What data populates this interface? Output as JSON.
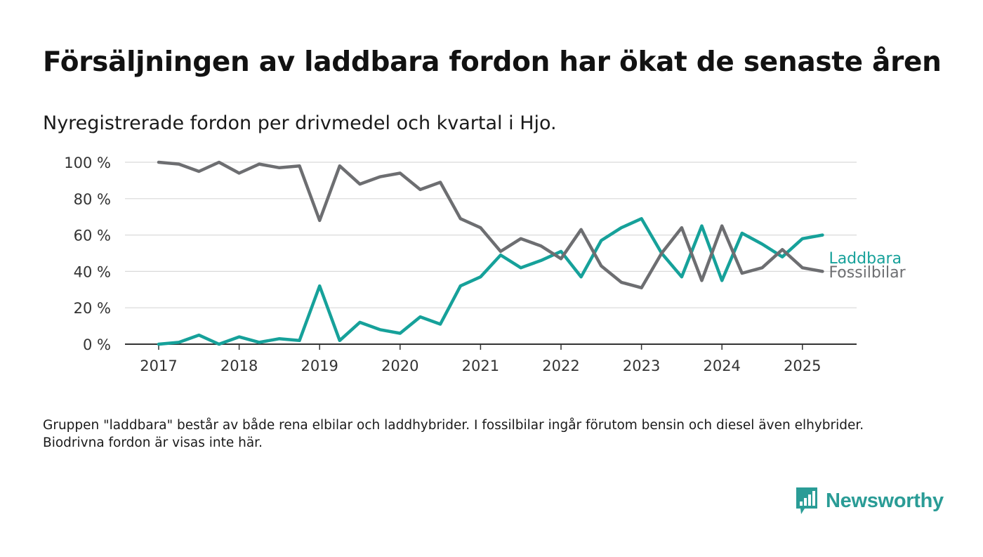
{
  "title": "Försäljningen av laddbara fordon har ökat de senaste åren",
  "subtitle": "Nyregistrerade fordon per drivmedel och kvartal i Hjo.",
  "footnote": "Gruppen \"laddbara\" består av både rena elbilar och laddhybrider. I fossilbilar ingår förutom bensin och diesel även elhybrider. Biodrivna fordon är visas inte här.",
  "logo": {
    "text": "Newsworthy",
    "icon": "bar-chart-speech-bubble-icon",
    "color": "#2a9c96"
  },
  "chart_data": {
    "type": "line",
    "x_labels": [
      "2017Q1",
      "2017Q2",
      "2017Q3",
      "2017Q4",
      "2018Q1",
      "2018Q2",
      "2018Q3",
      "2018Q4",
      "2019Q1",
      "2019Q2",
      "2019Q3",
      "2019Q4",
      "2020Q1",
      "2020Q2",
      "2020Q3",
      "2020Q4",
      "2021Q1",
      "2021Q2",
      "2021Q3",
      "2021Q4",
      "2022Q1",
      "2022Q2",
      "2022Q3",
      "2022Q4",
      "2023Q1",
      "2023Q2",
      "2023Q3",
      "2023Q4",
      "2024Q1",
      "2024Q2",
      "2024Q3",
      "2024Q4",
      "2025Q1",
      "2025Q2"
    ],
    "x_ticks": [
      {
        "label": "2017",
        "index": 0
      },
      {
        "label": "2018",
        "index": 4
      },
      {
        "label": "2019",
        "index": 8
      },
      {
        "label": "2020",
        "index": 12
      },
      {
        "label": "2021",
        "index": 16
      },
      {
        "label": "2022",
        "index": 20
      },
      {
        "label": "2023",
        "index": 24
      },
      {
        "label": "2024",
        "index": 28
      },
      {
        "label": "2025",
        "index": 32
      }
    ],
    "y_ticks": [
      "0 %",
      "20 %",
      "40 %",
      "60 %",
      "80 %",
      "100 %"
    ],
    "y_tick_values": [
      0,
      20,
      40,
      60,
      80,
      100
    ],
    "ylim": [
      0,
      100
    ],
    "grid": "horizontal",
    "series": [
      {
        "name": "Laddbara",
        "color": "#16a19a",
        "values": [
          0,
          1,
          5,
          0,
          4,
          1,
          3,
          2,
          32,
          2,
          12,
          8,
          6,
          15,
          11,
          32,
          37,
          49,
          42,
          46,
          51,
          37,
          57,
          64,
          69,
          50,
          37,
          65,
          35,
          61,
          55,
          48,
          58,
          60
        ]
      },
      {
        "name": "Fossilbilar",
        "color": "#6d6e71",
        "values": [
          100,
          99,
          95,
          100,
          94,
          99,
          97,
          98,
          68,
          98,
          88,
          92,
          94,
          85,
          89,
          69,
          64,
          51,
          58,
          54,
          47,
          63,
          43,
          34,
          31,
          50,
          64,
          35,
          65,
          39,
          42,
          52,
          42,
          40
        ]
      }
    ]
  }
}
